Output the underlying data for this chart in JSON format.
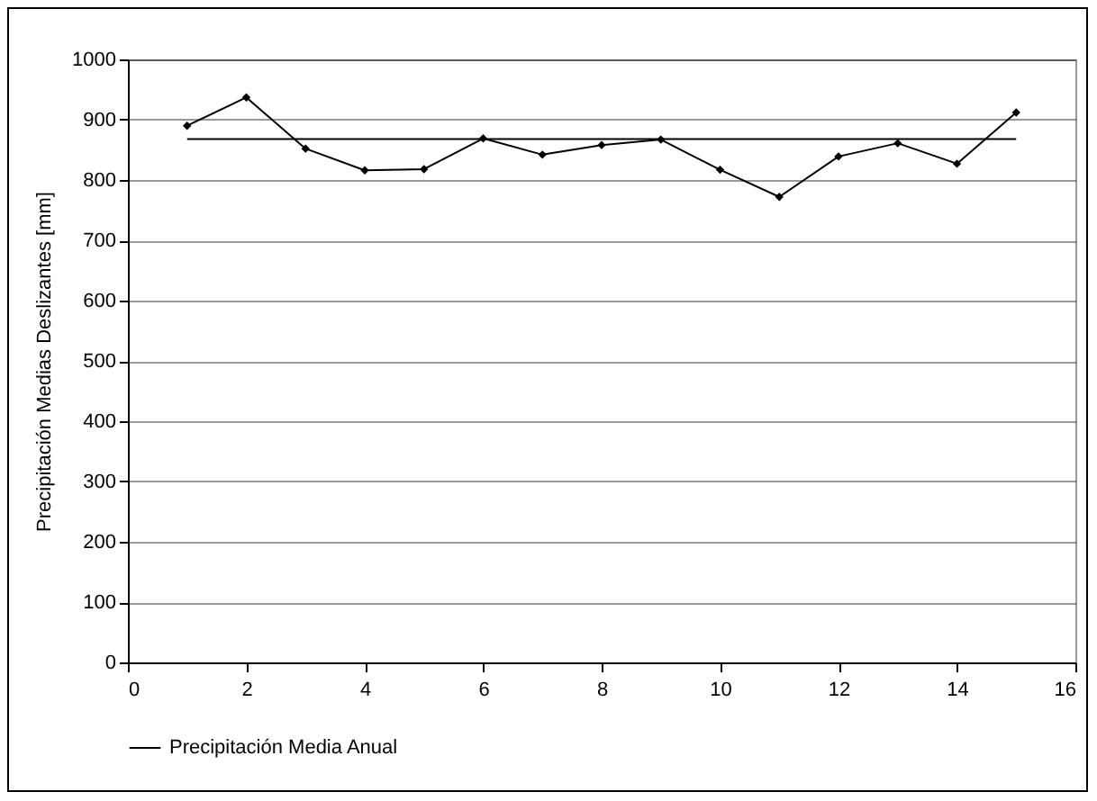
{
  "chart_data": {
    "type": "line",
    "ylabel": "Precipitación Medias Deslizantes [mm]",
    "x": [
      1,
      2,
      3,
      4,
      5,
      6,
      7,
      8,
      9,
      10,
      11,
      12,
      13,
      14,
      15
    ],
    "series": [
      {
        "color": "#000000",
        "marker": "diamond",
        "values": [
          890,
          937,
          852,
          816,
          818,
          869,
          842,
          858,
          867,
          817,
          772,
          839,
          861,
          827,
          912
        ]
      },
      {
        "name": "Precipitación Media Anual",
        "color": "#000000",
        "marker": "none",
        "x": [
          1,
          15
        ],
        "values": [
          868,
          868
        ]
      }
    ],
    "xlim": [
      0,
      16
    ],
    "xticks": [
      0,
      2,
      4,
      6,
      8,
      10,
      12,
      14,
      16
    ],
    "ylim": [
      0,
      1000
    ],
    "yticks": [
      0,
      100,
      200,
      300,
      400,
      500,
      600,
      700,
      800,
      900,
      1000
    ],
    "grid": "y",
    "legend": "bottom"
  }
}
